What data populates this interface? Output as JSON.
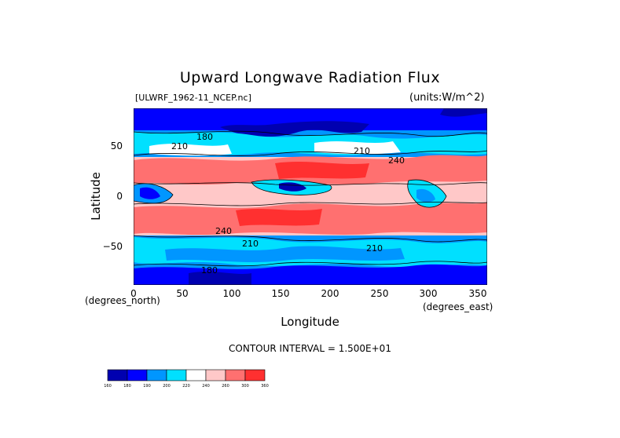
{
  "chart_data": {
    "type": "heatmap",
    "title": "Upward Longwave Radiation Flux",
    "source_label": "[ULWRF_1962-11_NCEP.nc]",
    "units_label": "(units:W/m^2)",
    "xlabel": "Longitude",
    "ylabel": "Latitude",
    "x_unit_label": "(degrees_east)",
    "y_unit_label": "(degrees_north)",
    "xlim": [
      0,
      357.5
    ],
    "ylim": [
      -90,
      90
    ],
    "x_ticks": [
      "0",
      "50",
      "100",
      "150",
      "200",
      "250",
      "300",
      "350"
    ],
    "y_ticks": [
      "50",
      "0",
      "−50"
    ],
    "contour_interval_label": "CONTOUR INTERVAL = 1.500E+01",
    "contour_labels": [
      "210",
      "240",
      "180"
    ],
    "colorbar": {
      "levels": [
        "160",
        "180",
        "190",
        "200",
        "220",
        "240",
        "260",
        "300",
        "360"
      ],
      "colors": [
        "#0000b0",
        "#0000ff",
        "#0096ff",
        "#00e0ff",
        "#ffffff",
        "#ffc8c8",
        "#ff7070",
        "#ff3030"
      ]
    }
  }
}
